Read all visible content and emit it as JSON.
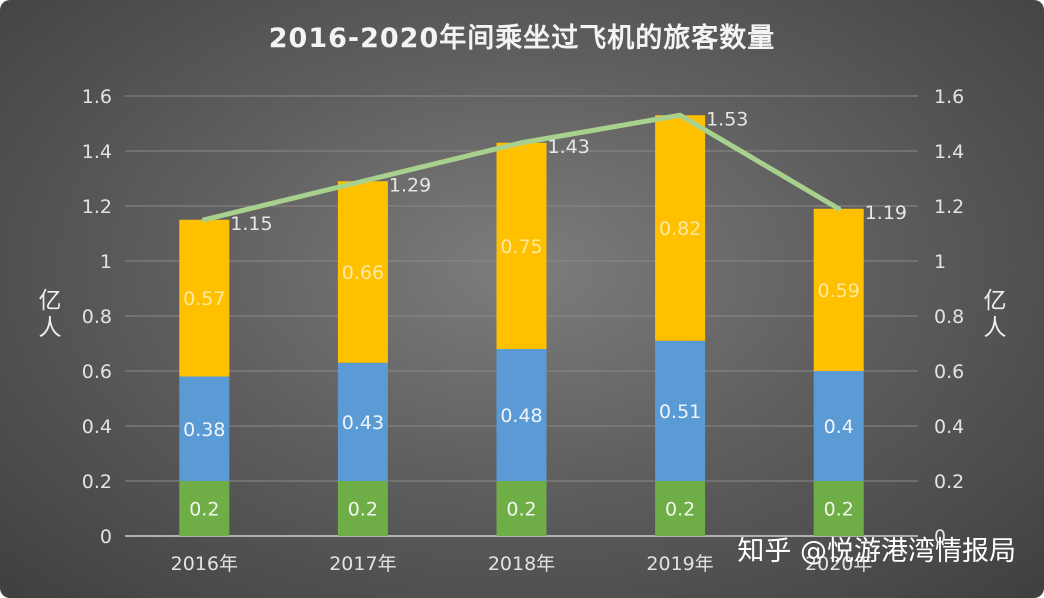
{
  "chart_data": {
    "type": "bar",
    "stacked": true,
    "title": "2016-2020年间乘坐过飞机的旅客数量",
    "categories": [
      "2016年",
      "2017年",
      "2018年",
      "2019年",
      "2020年"
    ],
    "series": [
      {
        "values": [
          0.2,
          0.2,
          0.2,
          0.2,
          0.2
        ],
        "color": "#6fad47",
        "labels": [
          "0.2",
          "0.2",
          "0.2",
          "0.2",
          "0.2"
        ]
      },
      {
        "values": [
          0.38,
          0.43,
          0.48,
          0.51,
          0.4
        ],
        "color": "#5b9bd5",
        "labels": [
          "0.38",
          "0.43",
          "0.48",
          "0.51",
          "0.4"
        ]
      },
      {
        "values": [
          0.57,
          0.66,
          0.75,
          0.82,
          0.59
        ],
        "color": "#ffc000",
        "labels": [
          "0.57",
          "0.66",
          "0.75",
          "0.82",
          "0.59"
        ]
      }
    ],
    "line": {
      "values": [
        1.15,
        1.29,
        1.43,
        1.53,
        1.19
      ],
      "labels": [
        "1.15",
        "1.29",
        "1.43",
        "1.53",
        "1.19"
      ],
      "color": "#a9d18e"
    },
    "ylabel": "亿人",
    "y2label": "亿人",
    "ylim": [
      0,
      1.6
    ],
    "yticks": [
      "0",
      "0.2",
      "0.4",
      "0.6",
      "0.8",
      "1",
      "1.2",
      "1.4",
      "1.6"
    ],
    "y2ticks": [
      "0",
      "0.2",
      "0.4",
      "0.6",
      "0.8",
      "1",
      "1.2",
      "1.4",
      "1.6"
    ],
    "grid": true
  },
  "watermark": "知乎 @悦游港湾情报局",
  "colors": {
    "background": "#5f5f5f",
    "grid": "#8a8a8a",
    "axis_text": "#e3e3e3"
  }
}
